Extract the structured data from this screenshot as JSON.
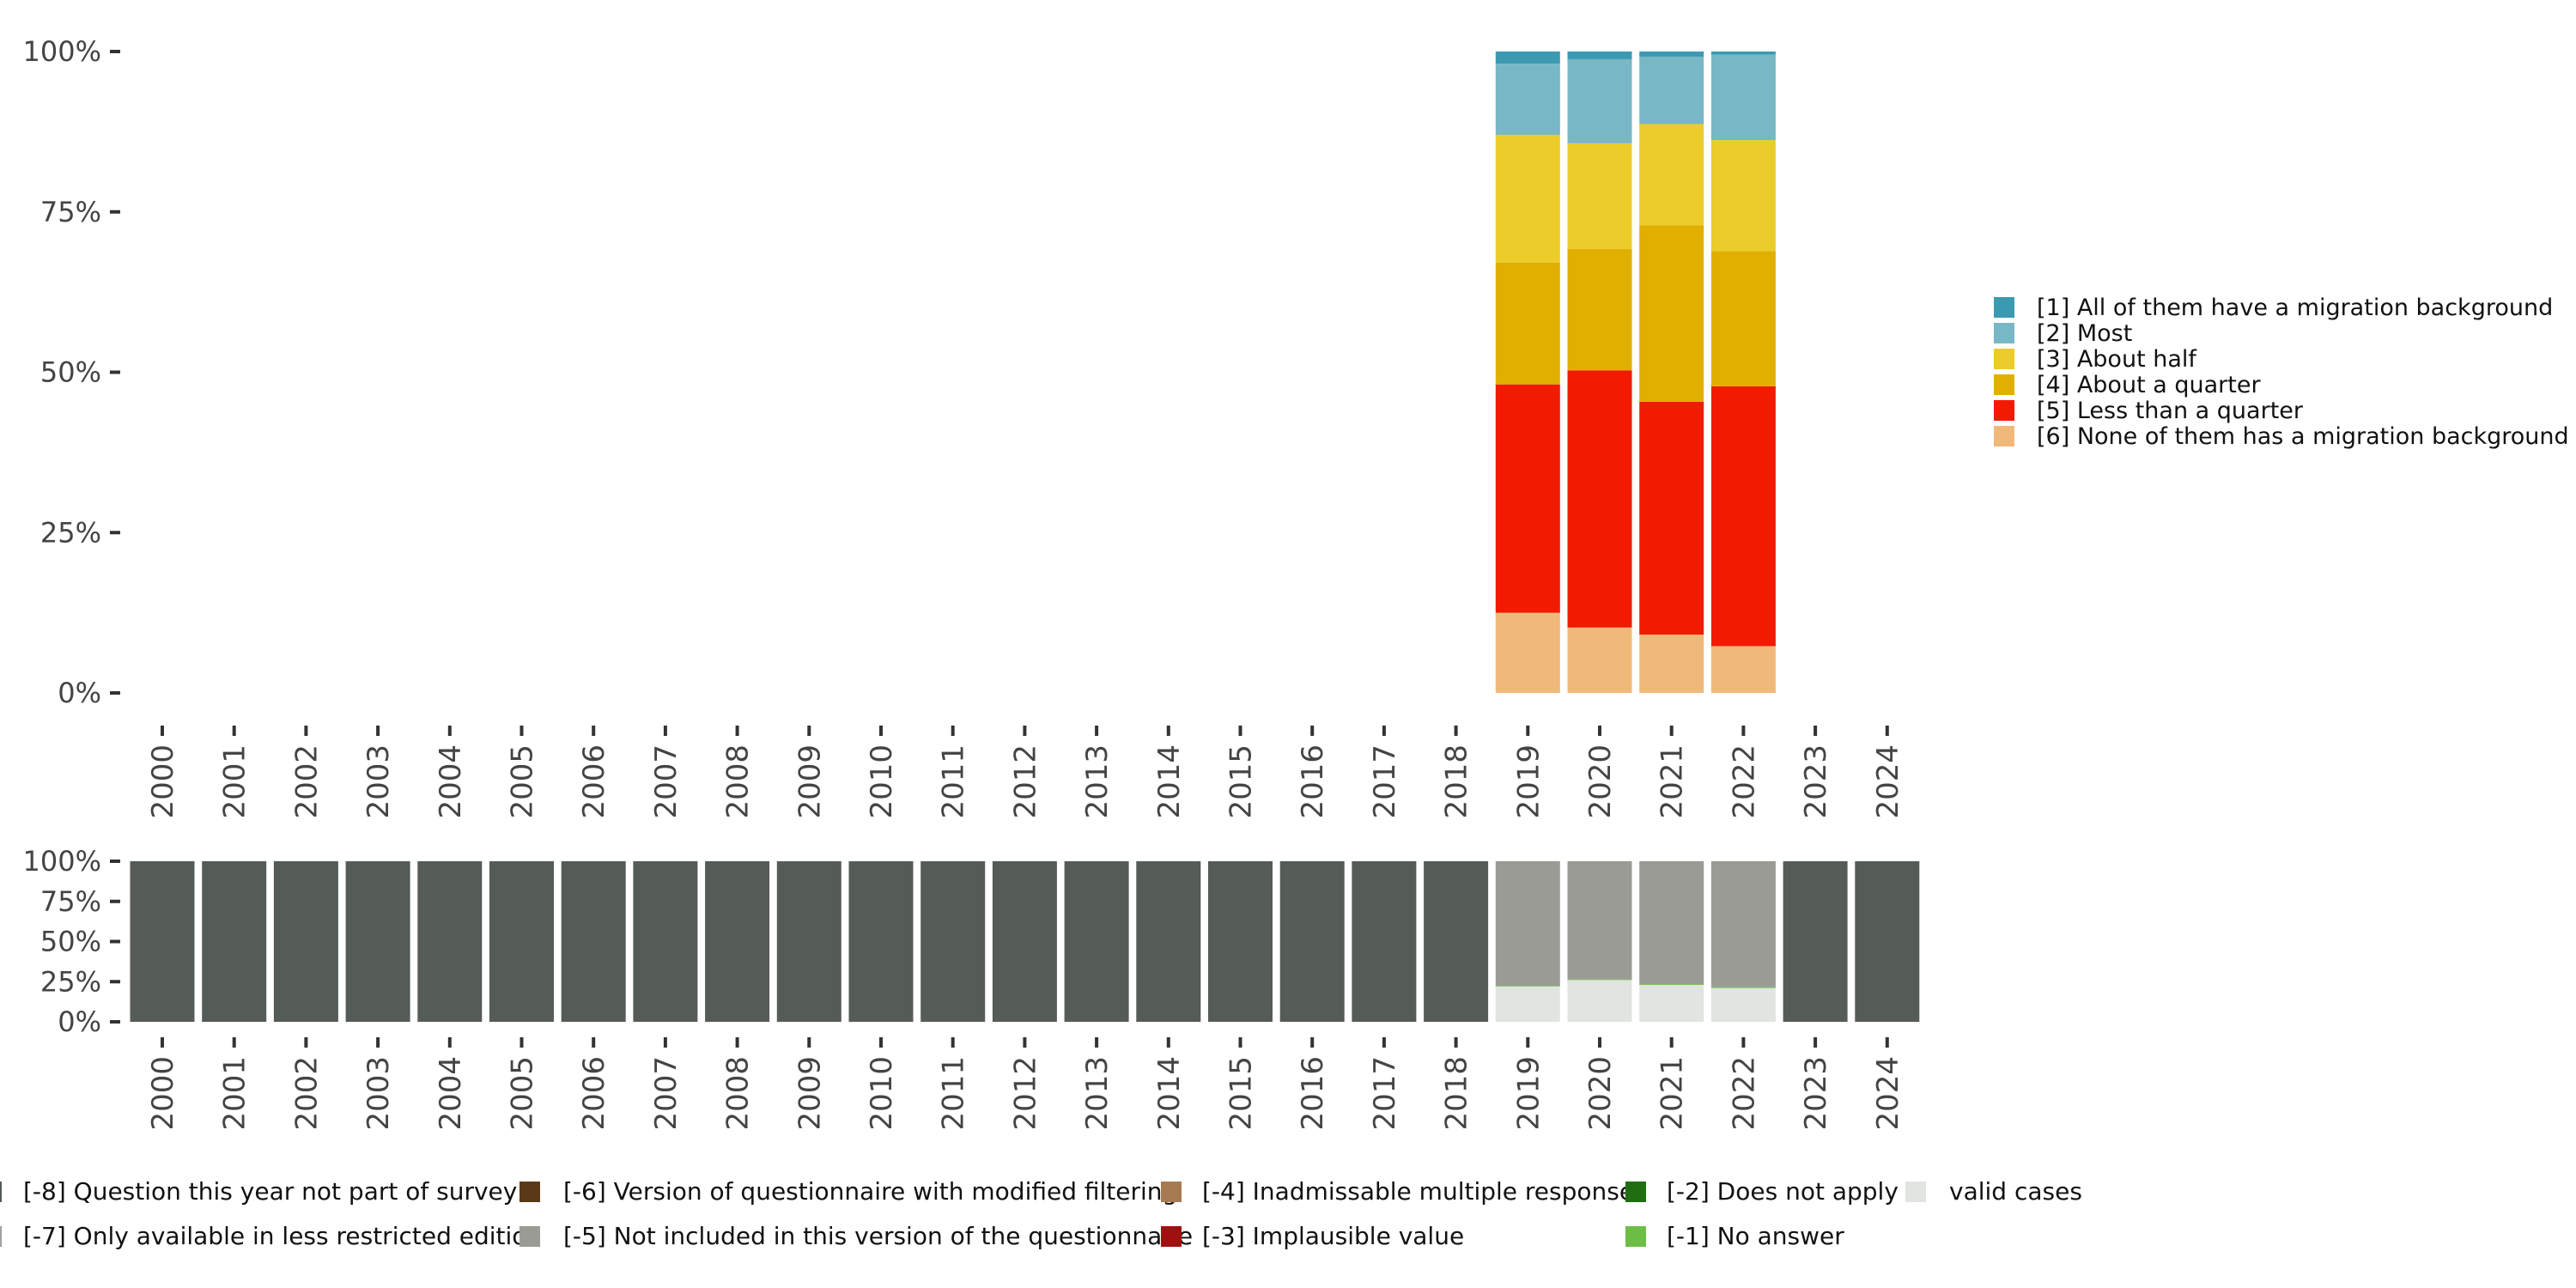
{
  "chart_data": [
    {
      "type": "bar",
      "stacked": true,
      "normalized": true,
      "categories": [
        "2000",
        "2001",
        "2002",
        "2003",
        "2004",
        "2005",
        "2006",
        "2007",
        "2008",
        "2009",
        "2010",
        "2011",
        "2012",
        "2013",
        "2014",
        "2015",
        "2016",
        "2017",
        "2018",
        "2019",
        "2020",
        "2021",
        "2022",
        "2023",
        "2024"
      ],
      "y_ticks": [
        "0%",
        "25%",
        "50%",
        "75%",
        "100%"
      ],
      "ylim": [
        0,
        100
      ],
      "legend_position": "right",
      "series": [
        {
          "name": "[6] None of them has a migration background",
          "color": "#F0B97A",
          "values": [
            0,
            0,
            0,
            0,
            0,
            0,
            0,
            0,
            0,
            0,
            0,
            0,
            0,
            0,
            0,
            0,
            0,
            0,
            0,
            12.5,
            10.2,
            9.1,
            7.3,
            0,
            0
          ]
        },
        {
          "name": "[5] Less than a quarter",
          "color": "#F21A00",
          "values": [
            0,
            0,
            0,
            0,
            0,
            0,
            0,
            0,
            0,
            0,
            0,
            0,
            0,
            0,
            0,
            0,
            0,
            0,
            0,
            35.6,
            40.1,
            36.3,
            40.5,
            0,
            0
          ]
        },
        {
          "name": "[4] About a quarter",
          "color": "#E1AF00",
          "values": [
            0,
            0,
            0,
            0,
            0,
            0,
            0,
            0,
            0,
            0,
            0,
            0,
            0,
            0,
            0,
            0,
            0,
            0,
            0,
            19.0,
            18.9,
            27.5,
            21.1,
            0,
            0
          ]
        },
        {
          "name": "[3] About half",
          "color": "#EBCC2A",
          "values": [
            0,
            0,
            0,
            0,
            0,
            0,
            0,
            0,
            0,
            0,
            0,
            0,
            0,
            0,
            0,
            0,
            0,
            0,
            0,
            19.9,
            16.5,
            15.8,
            17.3,
            0,
            0
          ]
        },
        {
          "name": "[2] Most",
          "color": "#78B7C5",
          "values": [
            0,
            0,
            0,
            0,
            0,
            0,
            0,
            0,
            0,
            0,
            0,
            0,
            0,
            0,
            0,
            0,
            0,
            0,
            0,
            11.1,
            13.1,
            10.5,
            13.3,
            0,
            0
          ]
        },
        {
          "name": "[1] All of them have a migration background",
          "color": "#3B9AB2",
          "values": [
            0,
            0,
            0,
            0,
            0,
            0,
            0,
            0,
            0,
            0,
            0,
            0,
            0,
            0,
            0,
            0,
            0,
            0,
            0,
            1.9,
            1.2,
            0.8,
            0.5,
            0,
            0
          ]
        }
      ]
    },
    {
      "type": "bar",
      "stacked": true,
      "normalized": true,
      "categories": [
        "2000",
        "2001",
        "2002",
        "2003",
        "2004",
        "2005",
        "2006",
        "2007",
        "2008",
        "2009",
        "2010",
        "2011",
        "2012",
        "2013",
        "2014",
        "2015",
        "2016",
        "2017",
        "2018",
        "2019",
        "2020",
        "2021",
        "2022",
        "2023",
        "2024"
      ],
      "y_ticks": [
        "0%",
        "25%",
        "50%",
        "75%",
        "100%"
      ],
      "ylim": [
        0,
        100
      ],
      "legend_position": "bottom",
      "series": [
        {
          "name": "valid cases",
          "color": "#E0E6DF",
          "values": [
            0,
            0,
            0,
            0,
            0,
            0,
            0,
            0,
            0,
            0,
            0,
            0,
            0,
            0,
            0,
            0,
            0,
            0,
            0,
            22,
            26,
            23,
            21,
            0,
            0
          ]
        },
        {
          "name": "[-1] No answer",
          "color": "#6DBE45",
          "values": [
            0,
            0,
            0,
            0,
            0,
            0,
            0,
            0,
            0,
            0,
            0,
            0,
            0,
            0,
            0,
            0,
            0,
            0,
            0,
            0.4,
            0.4,
            0.5,
            0.5,
            0,
            0
          ]
        },
        {
          "name": "[-5] Not included in this version of the questionnaire",
          "color": "#999B94",
          "values": [
            0,
            0,
            0,
            0,
            0,
            0,
            0,
            0,
            0,
            0,
            0,
            0,
            0,
            0,
            0,
            0,
            0,
            0,
            0,
            77.6,
            73.6,
            76.5,
            78.5,
            0,
            0
          ]
        },
        {
          "name": "[-8] Question this year not part of survey",
          "color": "#555B56",
          "values": [
            100,
            100,
            100,
            100,
            100,
            100,
            100,
            100,
            100,
            100,
            100,
            100,
            100,
            100,
            100,
            100,
            100,
            100,
            100,
            0,
            0,
            0,
            0,
            100,
            100
          ]
        }
      ],
      "legend": [
        {
          "name": "[-8] Question this year not part of survey",
          "color": "#555B56"
        },
        {
          "name": "[-7] Only available in less restricted edition",
          "color": "#A0A0A0"
        },
        {
          "name": "[-6] Version of questionnaire with modified filtering",
          "color": "#5A3A16"
        },
        {
          "name": "[-5] Not included in this version of the questionnaire",
          "color": "#999B94"
        },
        {
          "name": "[-4] Inadmissable multiple response",
          "color": "#A67B52"
        },
        {
          "name": "[-3] Implausible value",
          "color": "#A01010"
        },
        {
          "name": "[-2] Does not apply",
          "color": "#1F6E12"
        },
        {
          "name": "[-1] No answer",
          "color": "#6DBE45"
        },
        {
          "name": "valid cases",
          "color": "#E0E6DF"
        }
      ]
    }
  ]
}
